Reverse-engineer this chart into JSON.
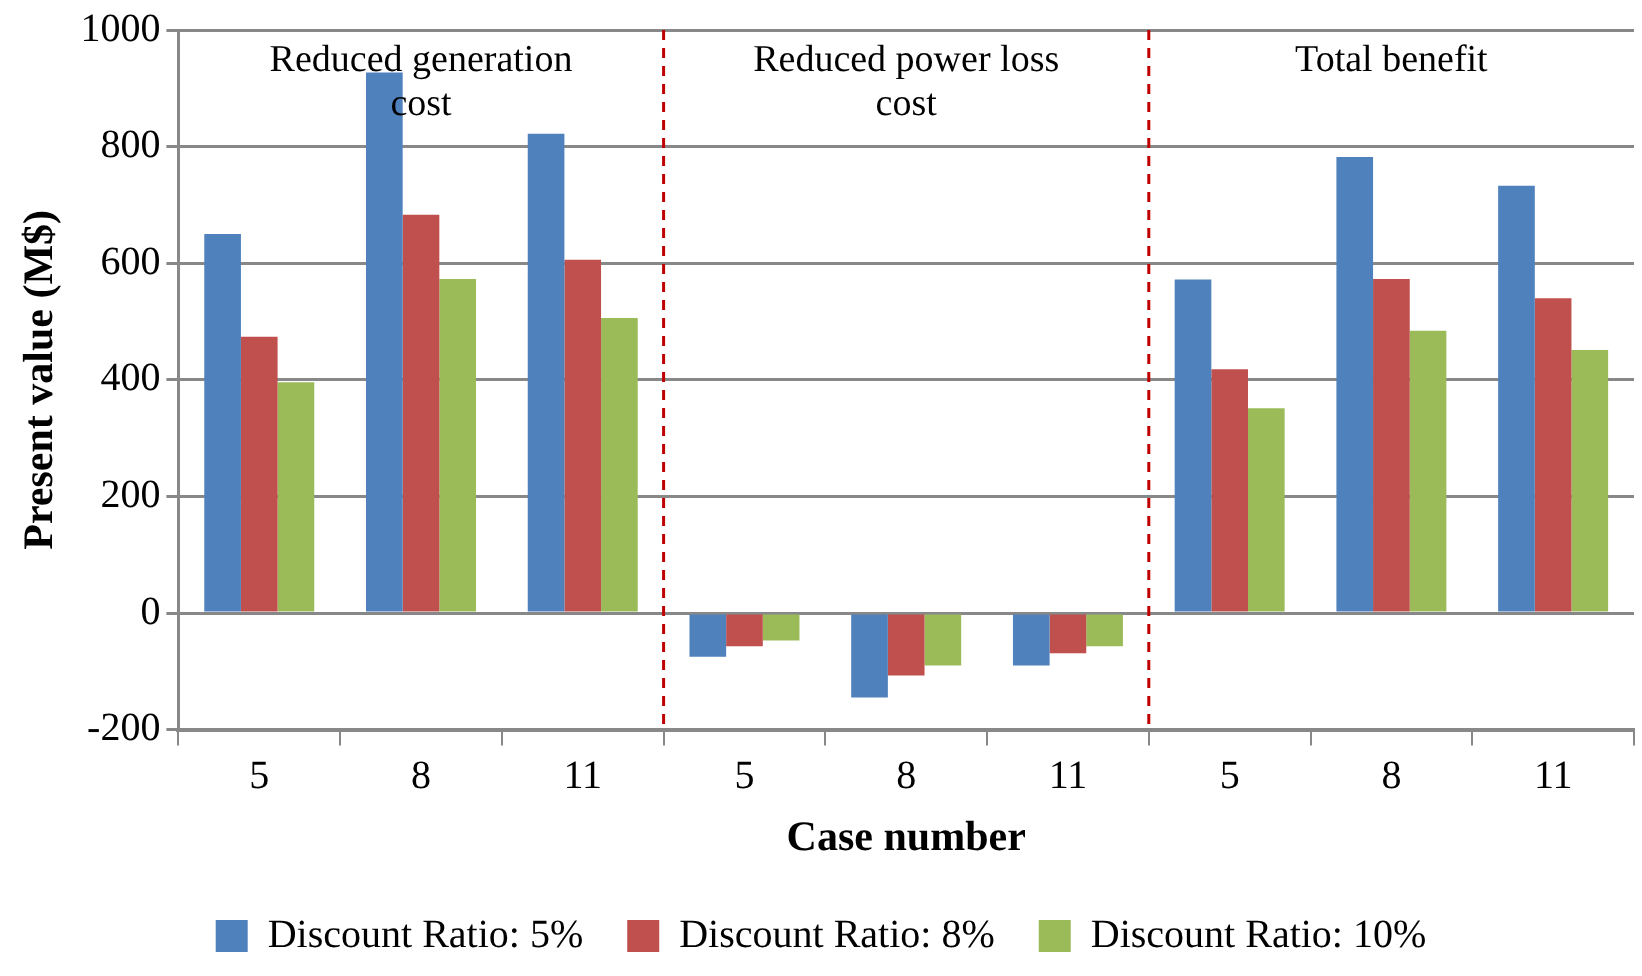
{
  "chart_data": {
    "type": "bar",
    "xlabel": "Case number",
    "ylabel": "Present value (M$)",
    "categories": [
      "5",
      "8",
      "11",
      "5",
      "8",
      "11",
      "5",
      "8",
      "11"
    ],
    "series": [
      {
        "name": "Discount Ratio: 5%",
        "color": "#4f81bd",
        "values": [
          650,
          927,
          822,
          -75,
          -145,
          -90,
          572,
          782,
          733
        ]
      },
      {
        "name": "Discount Ratio: 8%",
        "color": "#c0504d",
        "values": [
          474,
          683,
          606,
          -57,
          -107,
          -69,
          418,
          573,
          540
        ]
      },
      {
        "name": "Discount Ratio: 10%",
        "color": "#9bbb59",
        "values": [
          396,
          573,
          506,
          -47,
          -90,
          -57,
          351,
          484,
          451
        ]
      }
    ],
    "ylim": [
      -200,
      1000
    ],
    "yticks": [
      -200,
      0,
      200,
      400,
      600,
      800,
      1000
    ],
    "grid": "y",
    "legend": "bottom",
    "annotations": [
      "Reduced generation cost",
      "Reduced power loss cost",
      "Total benefit"
    ]
  }
}
